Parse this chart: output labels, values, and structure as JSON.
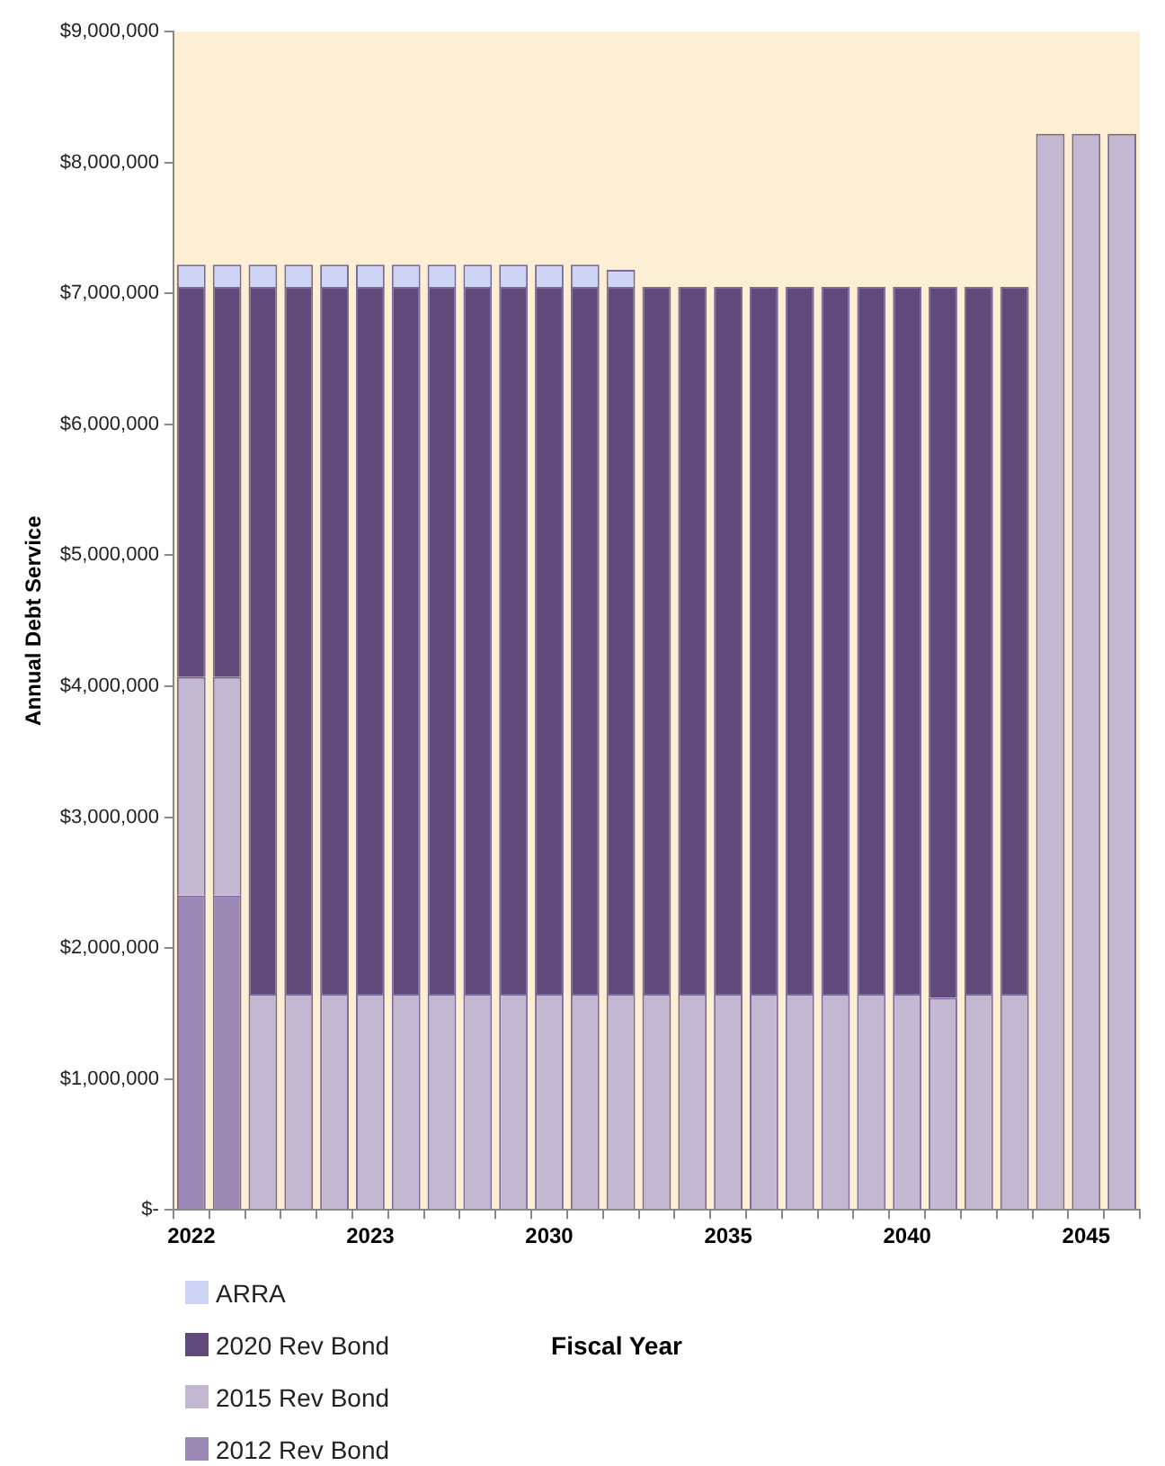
{
  "chart_data": {
    "type": "bar",
    "stacked": true,
    "xlabel": "Fiscal Year",
    "ylabel": "Annual Debt Service",
    "categories": [
      "2022",
      null,
      null,
      null,
      null,
      "2023",
      null,
      null,
      null,
      null,
      "2030",
      null,
      null,
      null,
      null,
      "2035",
      null,
      null,
      null,
      null,
      "2040",
      null,
      null,
      null,
      null,
      "2045",
      null
    ],
    "series": [
      {
        "name": "2012 Rev Bond",
        "color": "#9b88b5",
        "values": [
          2400000,
          2400000,
          0,
          0,
          0,
          0,
          0,
          0,
          0,
          0,
          0,
          0,
          0,
          0,
          0,
          0,
          0,
          0,
          0,
          0,
          0,
          0,
          0,
          0,
          0,
          0,
          0
        ]
      },
      {
        "name": "2015 Rev Bond",
        "color": "#c3b8d1",
        "values": [
          1670000,
          1670000,
          1650000,
          1650000,
          1650000,
          1650000,
          1650000,
          1650000,
          1650000,
          1650000,
          1650000,
          1650000,
          1650000,
          1650000,
          1650000,
          1650000,
          1650000,
          1650000,
          1650000,
          1650000,
          1650000,
          1620000,
          1650000,
          1650000,
          8220000,
          8220000,
          8220000
        ]
      },
      {
        "name": "2020 Rev Bond",
        "color": "#604a7b",
        "values": [
          2980000,
          2980000,
          5400000,
          5400000,
          5400000,
          5400000,
          5400000,
          5400000,
          5400000,
          5400000,
          5400000,
          5400000,
          5400000,
          5400000,
          5400000,
          5400000,
          5400000,
          5400000,
          5400000,
          5400000,
          5400000,
          5430000,
          5400000,
          5400000,
          0,
          0,
          0
        ]
      },
      {
        "name": "ARRA",
        "color": "#ccd5f5",
        "values": [
          170000,
          170000,
          170000,
          170000,
          170000,
          170000,
          170000,
          170000,
          170000,
          170000,
          170000,
          170000,
          130000,
          0,
          0,
          0,
          0,
          0,
          0,
          0,
          0,
          0,
          0,
          0,
          0,
          0,
          0
        ]
      }
    ],
    "ylim": [
      0,
      9000000
    ],
    "yticks": [
      {
        "value": 0,
        "label": "$-"
      },
      {
        "value": 1000000,
        "label": "$1,000,000"
      },
      {
        "value": 2000000,
        "label": "$2,000,000"
      },
      {
        "value": 3000000,
        "label": "$3,000,000"
      },
      {
        "value": 4000000,
        "label": "$4,000,000"
      },
      {
        "value": 5000000,
        "label": "$5,000,000"
      },
      {
        "value": 6000000,
        "label": "$6,000,000"
      },
      {
        "value": 7000000,
        "label": "$7,000,000"
      },
      {
        "value": 8000000,
        "label": "$8,000,000"
      },
      {
        "value": 9000000,
        "label": "$9,000,000"
      }
    ],
    "grid": false,
    "legend": "bottom left"
  }
}
